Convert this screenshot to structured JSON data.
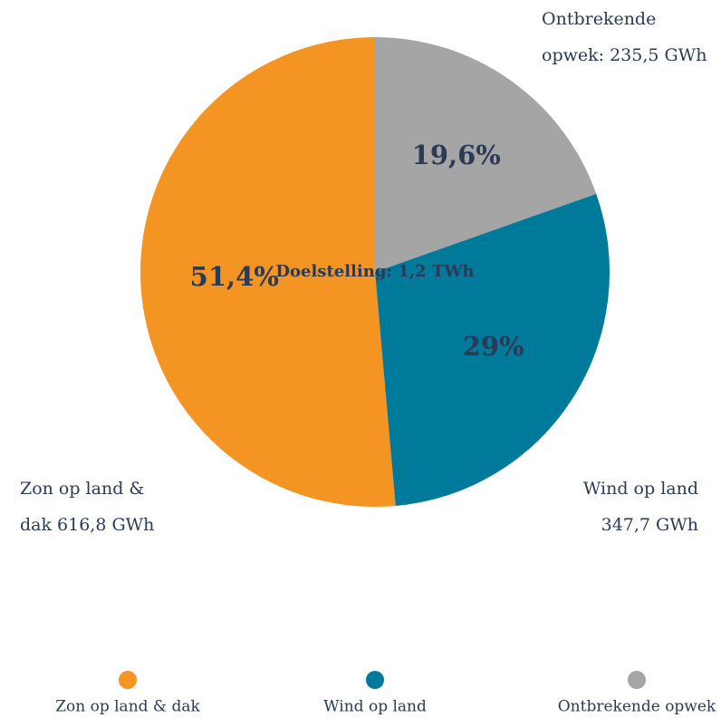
{
  "chart_data": {
    "type": "pie",
    "annotation": "Doelstelling: 1,2 TWh",
    "categories": [
      "Zon op land & dak",
      "Wind op land",
      "Ontbrekende opwek"
    ],
    "values": [
      51.4,
      29,
      19.6
    ],
    "value_labels": [
      "51,4%",
      "29%",
      "19,6%"
    ],
    "slice_labels": [
      [
        "Zon op land &",
        "dak 616,8 GWh"
      ],
      [
        "Wind op land",
        "347,7 GWh"
      ],
      [
        "Ontbrekende",
        "opwek: 235,5 GWh"
      ]
    ],
    "colors": [
      "#f39423",
      "#007a9a",
      "#a5a5a5"
    ],
    "legend": "bottom"
  }
}
